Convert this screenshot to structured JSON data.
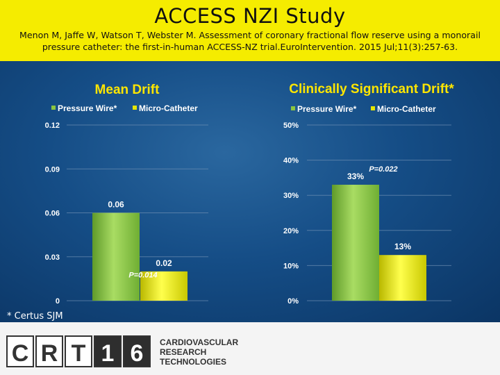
{
  "slide": {
    "title": "ACCESS NZI Study",
    "citation_line1": "Menon M, Jaffe W, Watson T, Webster M. Assessment of coronary fractional flow  reserve using a monorail",
    "citation_line2": "pressure catheter: the first-in-human ACCESS-NZ trial.EuroIntervention. 2015 Jul;11(3):257-63.",
    "footnote": "* Certus SJM"
  },
  "footer": {
    "logo_letters": [
      "C",
      "R",
      "T",
      "1",
      "6"
    ],
    "logo_text_lines": [
      "CARDIOVASCULAR",
      "RESEARCH",
      "TECHNOLOGIES"
    ]
  },
  "colors": {
    "pressure_wire": "#8cc63f",
    "micro_catheter": "#e6e600",
    "title_yellow": "#ffe600",
    "header_yellow": "#f5ec00"
  },
  "chart_data": [
    {
      "type": "bar",
      "title": "Mean Drift",
      "categories": [
        "Pressure Wire*",
        "Micro-Catheter"
      ],
      "legend": [
        "Pressure Wire*",
        "Micro-Catheter"
      ],
      "values": [
        0.06,
        0.02
      ],
      "data_labels": [
        "0.06",
        "0.02"
      ],
      "y_ticks": [
        "0.12",
        "0.09",
        "0.06",
        "0.03",
        "0"
      ],
      "ylim": [
        0,
        0.12
      ],
      "annotation": "P=0.014",
      "annotation_value": 0.014,
      "legend_position": "top",
      "grid": true
    },
    {
      "type": "bar",
      "title": "Clinically Significant Drift*",
      "categories": [
        "Pressure Wire*",
        "Micro-Catheter"
      ],
      "legend": [
        "Pressure Wire*",
        "Micro-Catheter"
      ],
      "values": [
        33,
        13
      ],
      "data_labels": [
        "33%",
        "13%"
      ],
      "y_ticks": [
        "50%",
        "40%",
        "30%",
        "20%",
        "10%",
        "0%"
      ],
      "ylim": [
        0,
        50
      ],
      "annotation": "P=0.022",
      "annotation_value": 36,
      "legend_position": "top",
      "grid": true
    }
  ]
}
